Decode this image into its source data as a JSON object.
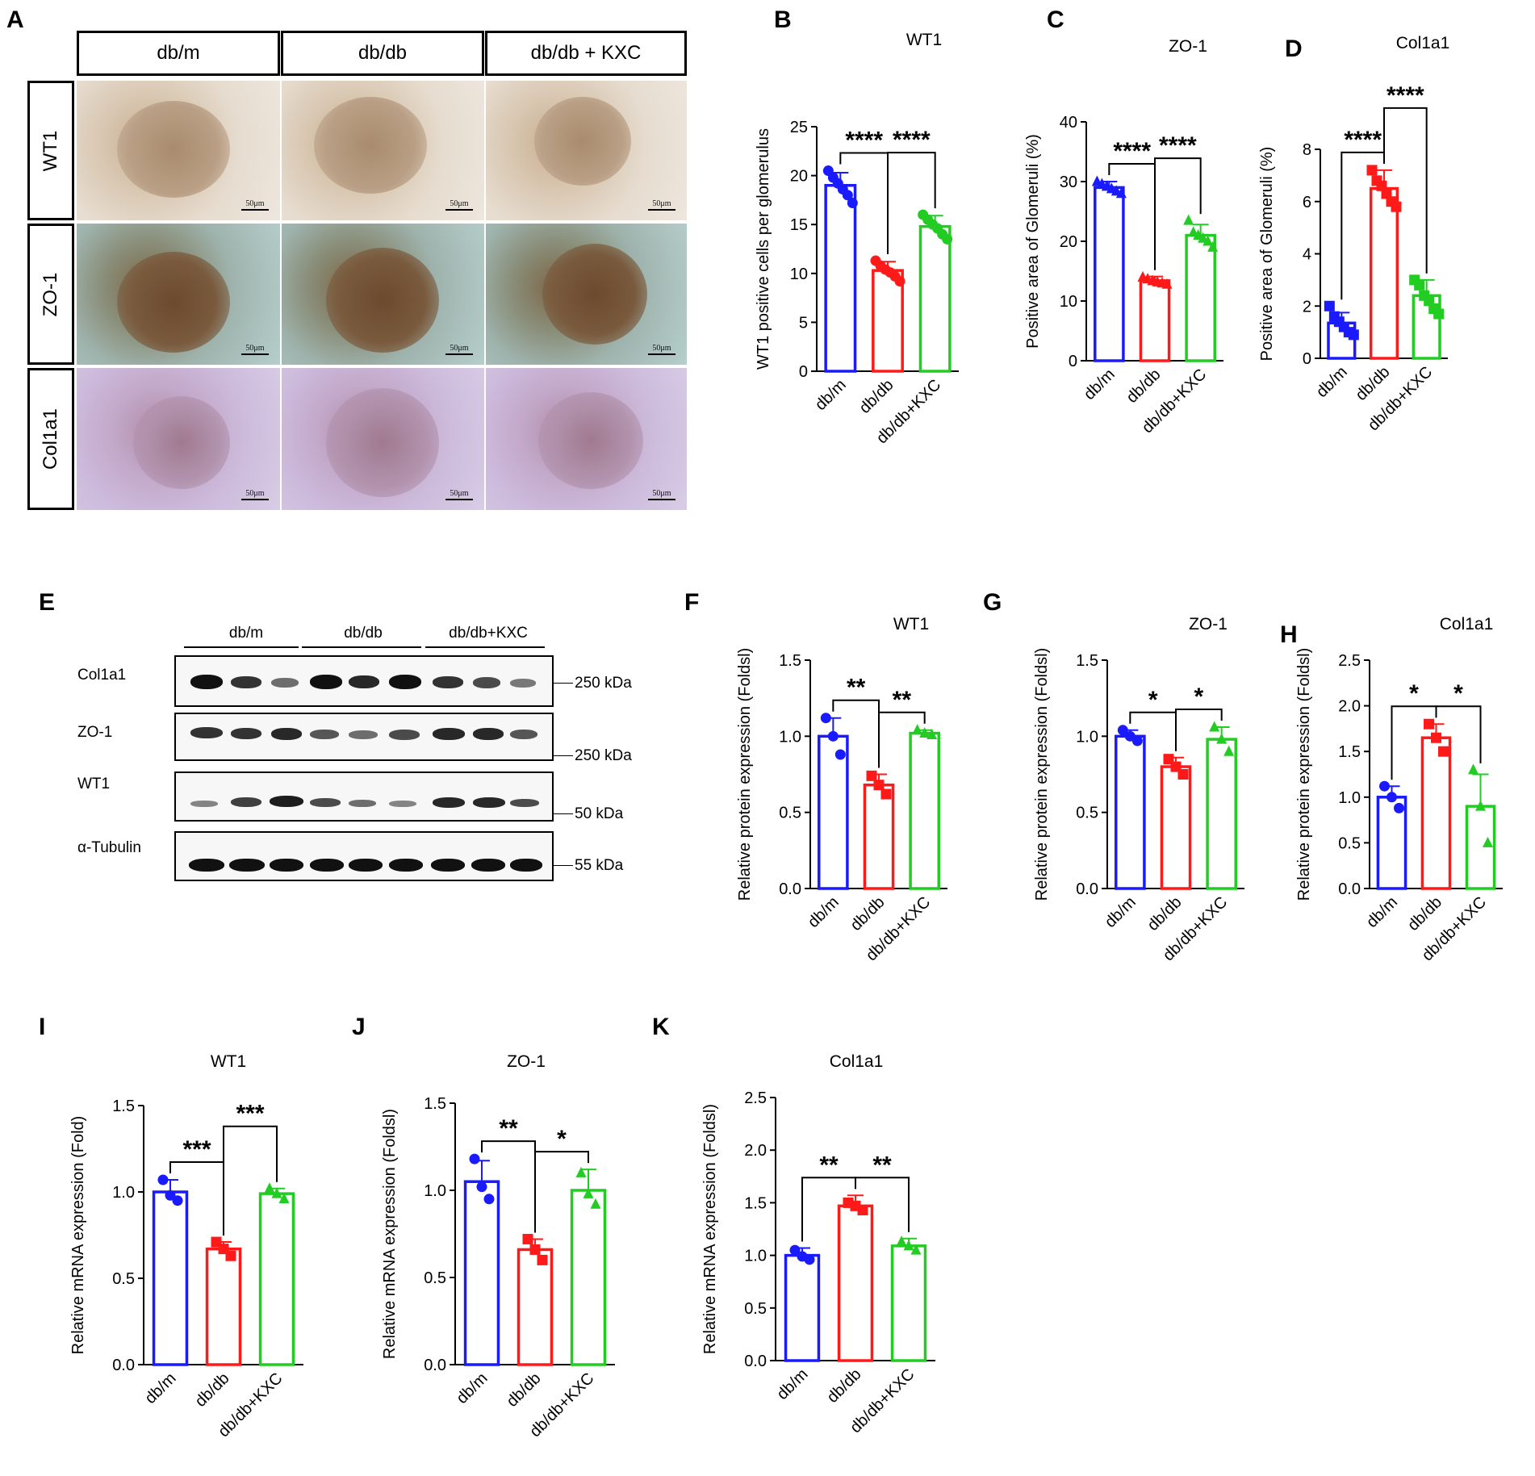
{
  "panel_letters": {
    "A": "A",
    "B": "B",
    "C": "C",
    "D": "D",
    "E": "E",
    "F": "F",
    "G": "G",
    "H": "H",
    "I": "I",
    "J": "J",
    "K": "K"
  },
  "panelA": {
    "columns": [
      "db/m",
      "db/db",
      "db/db + KXC"
    ],
    "rows": [
      "WT1",
      "ZO-1",
      "Col1a1"
    ],
    "scale_label": "50μm"
  },
  "panelE": {
    "groups": [
      "db/m",
      "db/db",
      "db/db+KXC"
    ],
    "rows": [
      {
        "label": "Col1a1",
        "kda": "250 kDa"
      },
      {
        "label": "ZO-1",
        "kda": "250 kDa"
      },
      {
        "label": "WT1",
        "kda": "50 kDa"
      },
      {
        "label": "α-Tubulin",
        "kda": "55 kDa"
      }
    ]
  },
  "colors": {
    "db_m": "#1a1aff",
    "db_db": "#ff1a1a",
    "kxc": "#22cc22"
  },
  "chart_data": [
    {
      "panel": "B",
      "type": "bar",
      "title": "WT1",
      "ylabel": "WT1 positive cells per glomerulus",
      "xlabel": "",
      "categories": [
        "db/m",
        "db/db",
        "db/db+KXC"
      ],
      "values": [
        19.0,
        10.3,
        14.8
      ],
      "errors": [
        1.3,
        0.9,
        1.1
      ],
      "points": [
        [
          20.5,
          19.8,
          19.2,
          18.6,
          18.0,
          17.2
        ],
        [
          11.3,
          10.8,
          10.4,
          10.1,
          9.7,
          9.2
        ],
        [
          16.0,
          15.5,
          15.0,
          14.6,
          14.0,
          13.5
        ]
      ],
      "marker": "circle",
      "ylim": [
        0,
        25
      ],
      "yticks": [
        "0",
        "5",
        "10",
        "15",
        "20",
        "25"
      ],
      "sig": [
        {
          "from": 0,
          "to": 1,
          "label": "****"
        },
        {
          "from": 1,
          "to": 2,
          "label": "****"
        }
      ]
    },
    {
      "panel": "C",
      "type": "bar",
      "title": "ZO-1",
      "ylabel": "Positive area of Glomeruli (%)",
      "xlabel": "",
      "categories": [
        "db/m",
        "db/db",
        "db/db+KXC"
      ],
      "values": [
        29.0,
        13.4,
        21.0
      ],
      "errors": [
        1.0,
        0.7,
        1.8
      ],
      "points": [
        [
          30.0,
          29.6,
          29.2,
          28.8,
          28.4,
          28.0
        ],
        [
          14.0,
          13.7,
          13.4,
          13.2,
          13.0,
          12.8
        ],
        [
          23.5,
          21.5,
          21.0,
          20.5,
          20.0,
          19.0
        ]
      ],
      "marker": "triangle",
      "ylim": [
        0,
        40
      ],
      "yticks": [
        "0",
        "10",
        "20",
        "30",
        "40"
      ],
      "sig": [
        {
          "from": 0,
          "to": 1,
          "label": "****"
        },
        {
          "from": 1,
          "to": 2,
          "label": "****"
        }
      ]
    },
    {
      "panel": "D",
      "type": "bar",
      "title": "Col1a1",
      "ylabel": "Positive area of Glomeruli (%)",
      "xlabel": "",
      "categories": [
        "db/m",
        "db/db",
        "db/db+KXC"
      ],
      "values": [
        1.35,
        6.5,
        2.4
      ],
      "errors": [
        0.4,
        0.7,
        0.6
      ],
      "points": [
        [
          2.0,
          1.6,
          1.4,
          1.2,
          1.0,
          0.9
        ],
        [
          7.2,
          6.8,
          6.6,
          6.3,
          6.0,
          5.8
        ],
        [
          3.0,
          2.8,
          2.4,
          2.2,
          1.9,
          1.7
        ]
      ],
      "marker": "square",
      "ylim": [
        0,
        8
      ],
      "yticks": [
        "0",
        "2",
        "4",
        "6",
        "8"
      ],
      "sig": [
        {
          "from": 0,
          "to": 1,
          "label": "****"
        },
        {
          "from": 1,
          "to": 2,
          "label": "****"
        }
      ]
    },
    {
      "panel": "F",
      "type": "bar",
      "title": "WT1",
      "ylabel": "Relative protein expression (Foldsl)",
      "xlabel": "",
      "categories": [
        "db/m",
        "db/db",
        "db/db+KXC"
      ],
      "values": [
        1.0,
        0.68,
        1.02
      ],
      "errors": [
        0.12,
        0.07,
        0.02
      ],
      "points": [
        [
          1.12,
          1.0,
          0.88
        ],
        [
          0.74,
          0.68,
          0.62
        ],
        [
          1.04,
          1.02,
          1.01
        ]
      ],
      "marker": "mixed",
      "ylim": [
        0,
        1.5
      ],
      "yticks": [
        "0.0",
        "0.5",
        "1.0",
        "1.5"
      ],
      "sig": [
        {
          "from": 0,
          "to": 1,
          "label": "**"
        },
        {
          "from": 1,
          "to": 2,
          "label": "**"
        }
      ]
    },
    {
      "panel": "G",
      "type": "bar",
      "title": "ZO-1",
      "ylabel": "Relative protein expression (Foldsl)",
      "xlabel": "",
      "categories": [
        "db/m",
        "db/db",
        "db/db+KXC"
      ],
      "values": [
        1.0,
        0.8,
        0.98
      ],
      "errors": [
        0.04,
        0.06,
        0.08
      ],
      "points": [
        [
          1.04,
          1.0,
          0.97
        ],
        [
          0.85,
          0.8,
          0.75
        ],
        [
          1.06,
          0.98,
          0.9
        ]
      ],
      "marker": "mixed",
      "ylim": [
        0,
        1.5
      ],
      "yticks": [
        "0.0",
        "0.5",
        "1.0",
        "1.5"
      ],
      "sig": [
        {
          "from": 0,
          "to": 1,
          "label": "*"
        },
        {
          "from": 1,
          "to": 2,
          "label": "*"
        }
      ]
    },
    {
      "panel": "H",
      "type": "bar",
      "title": "Col1a1",
      "ylabel": "Relative protein expression (Foldsl)",
      "xlabel": "",
      "categories": [
        "db/m",
        "db/db",
        "db/db+KXC"
      ],
      "values": [
        1.0,
        1.65,
        0.9
      ],
      "errors": [
        0.12,
        0.15,
        0.35
      ],
      "points": [
        [
          1.12,
          1.0,
          0.88
        ],
        [
          1.8,
          1.65,
          1.5
        ],
        [
          1.3,
          0.9,
          0.5
        ]
      ],
      "marker": "mixed",
      "ylim": [
        0,
        2.5
      ],
      "yticks": [
        "0.0",
        "0.5",
        "1.0",
        "1.5",
        "2.0",
        "2.5"
      ],
      "sig": [
        {
          "from": 0,
          "to": 1,
          "label": "*"
        },
        {
          "from": 1,
          "to": 2,
          "label": "*"
        }
      ]
    },
    {
      "panel": "I",
      "type": "bar",
      "title": "WT1",
      "ylabel": "Relative mRNA expression (Fold)",
      "xlabel": "",
      "categories": [
        "db/m",
        "db/db",
        "db/db+KXC"
      ],
      "values": [
        1.0,
        0.67,
        0.99
      ],
      "errors": [
        0.07,
        0.04,
        0.03
      ],
      "points": [
        [
          1.07,
          0.98,
          0.95
        ],
        [
          0.71,
          0.67,
          0.63
        ],
        [
          1.02,
          0.99,
          0.96
        ]
      ],
      "marker": "mixed",
      "ylim": [
        0,
        1.5
      ],
      "yticks": [
        "0.0",
        "0.5",
        "1.0",
        "1.5"
      ],
      "sig": [
        {
          "from": 0,
          "to": 1,
          "label": "***"
        },
        {
          "from": 1,
          "to": 2,
          "label": "***"
        }
      ]
    },
    {
      "panel": "J",
      "type": "bar",
      "title": "ZO-1",
      "ylabel": "Relative mRNA expression (Foldsl)",
      "xlabel": "",
      "categories": [
        "db/m",
        "db/db",
        "db/db+KXC"
      ],
      "values": [
        1.05,
        0.66,
        1.0
      ],
      "errors": [
        0.12,
        0.06,
        0.12
      ],
      "points": [
        [
          1.18,
          1.02,
          0.95
        ],
        [
          0.72,
          0.66,
          0.6
        ],
        [
          1.1,
          0.98,
          0.92
        ]
      ],
      "marker": "mixed",
      "ylim": [
        0,
        1.5
      ],
      "yticks": [
        "0.0",
        "0.5",
        "1.0",
        "1.5"
      ],
      "sig": [
        {
          "from": 0,
          "to": 1,
          "label": "**"
        },
        {
          "from": 1,
          "to": 2,
          "label": "*"
        }
      ]
    },
    {
      "panel": "K",
      "type": "bar",
      "title": "Col1a1",
      "ylabel": "Relative mRNA expression (Foldsl)",
      "xlabel": "",
      "categories": [
        "db/m",
        "db/db",
        "db/db+KXC"
      ],
      "values": [
        1.0,
        1.47,
        1.09
      ],
      "errors": [
        0.07,
        0.1,
        0.07
      ],
      "points": [
        [
          1.05,
          0.99,
          0.96
        ],
        [
          1.5,
          1.47,
          1.43
        ],
        [
          1.13,
          1.09,
          1.05
        ]
      ],
      "marker": "mixed",
      "ylim": [
        0,
        2.5
      ],
      "yticks": [
        "0.0",
        "0.5",
        "1.0",
        "1.5",
        "2.0",
        "2.5"
      ],
      "sig": [
        {
          "from": 0,
          "to": 1,
          "label": "**"
        },
        {
          "from": 1,
          "to": 2,
          "label": "**"
        }
      ]
    }
  ]
}
